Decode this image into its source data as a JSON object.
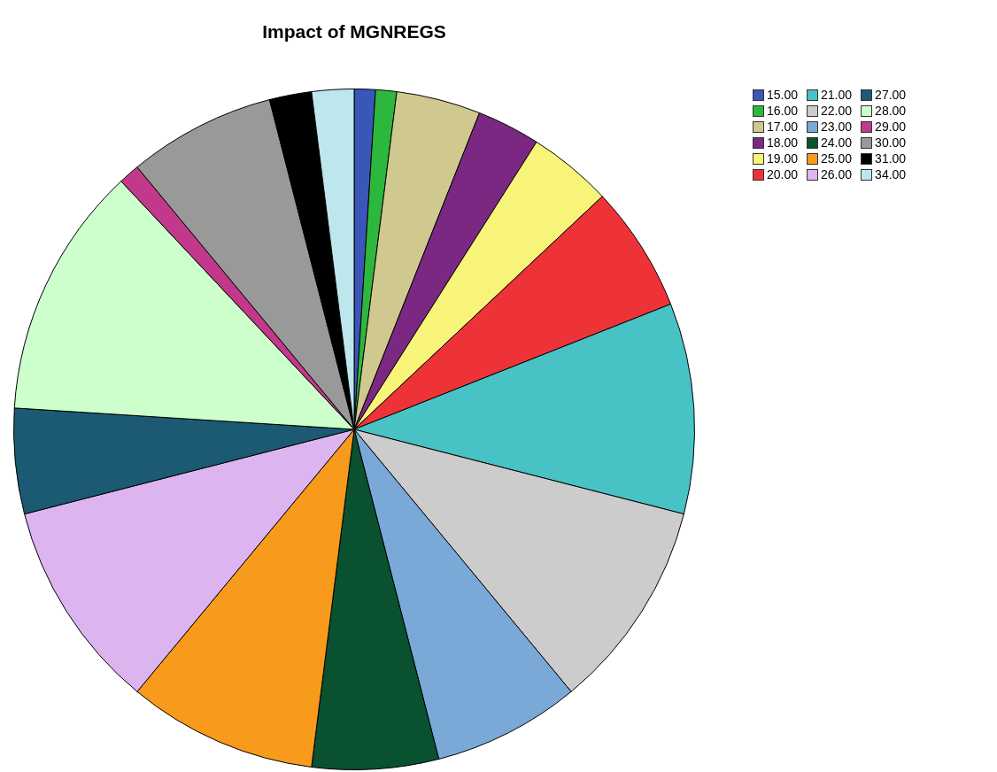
{
  "chart_data": {
    "type": "pie",
    "title": "Impact of MGNREGS",
    "categories": [
      "15.00",
      "16.00",
      "17.00",
      "18.00",
      "19.00",
      "20.00",
      "21.00",
      "22.00",
      "23.00",
      "24.00",
      "25.00",
      "26.00",
      "27.00",
      "28.00",
      "29.00",
      "30.00",
      "31.00",
      "34.00"
    ],
    "values": [
      1,
      1,
      4,
      3,
      4,
      6,
      10,
      10,
      7,
      6,
      9,
      10,
      5,
      12,
      1,
      7,
      2,
      2
    ],
    "colors": [
      "#3a56b8",
      "#2db83d",
      "#cfc98f",
      "#7b2882",
      "#f8f47a",
      "#ee3338",
      "#48c2c5",
      "#cccccc",
      "#7aa9d8",
      "#0a5130",
      "#f89a1c",
      "#dcb4f0",
      "#1b5a72",
      "#ccffcc",
      "#c2388a",
      "#999999",
      "#000000",
      "#bde7ec"
    ],
    "legend": "top right"
  }
}
